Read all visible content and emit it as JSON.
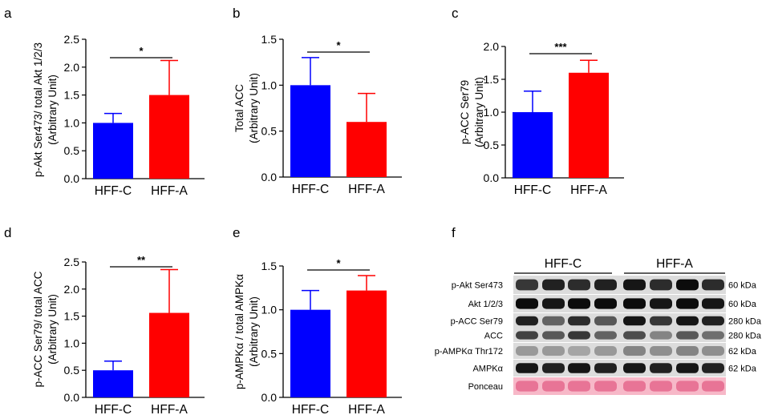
{
  "chart_data": [
    {
      "type": "bar",
      "panel": "a",
      "categories": [
        "HFF-C",
        "HFF-A"
      ],
      "values": [
        1.0,
        1.5
      ],
      "errors": [
        0.17,
        0.62
      ],
      "colors": [
        "#0000ff",
        "#ff0000"
      ],
      "ylabel": [
        "p-Akt Ser473/ total Akt 1/2/3",
        "(Arbitrary Unit)"
      ],
      "ylim": [
        0,
        2.5
      ],
      "yticks": [
        "0.0",
        "0.5",
        "1.0",
        "1.5",
        "2.0",
        "2.5"
      ],
      "significance": "*"
    },
    {
      "type": "bar",
      "panel": "b",
      "categories": [
        "HFF-C",
        "HFF-A"
      ],
      "values": [
        1.0,
        0.6
      ],
      "errors": [
        0.3,
        0.31
      ],
      "colors": [
        "#0000ff",
        "#ff0000"
      ],
      "ylabel": [
        "Total ACC",
        "(Arbitrary Unit)"
      ],
      "ylim": [
        0,
        1.5
      ],
      "yticks": [
        "0.0",
        "0.5",
        "1.0",
        "1.5"
      ],
      "significance": "*"
    },
    {
      "type": "bar",
      "panel": "c",
      "categories": [
        "HFF-C",
        "HFF-A"
      ],
      "values": [
        1.0,
        1.6
      ],
      "errors": [
        0.32,
        0.19
      ],
      "colors": [
        "#0000ff",
        "#ff0000"
      ],
      "ylabel": [
        "p-ACC Ser79",
        "(Arbitrary Unit)"
      ],
      "ylim": [
        0,
        2.0
      ],
      "yticks": [
        "0.0",
        "0.5",
        "1.0",
        "1.5",
        "2.0"
      ],
      "significance": "***"
    },
    {
      "type": "bar",
      "panel": "d",
      "categories": [
        "HFF-C",
        "HFF-A"
      ],
      "values": [
        0.5,
        1.56
      ],
      "errors": [
        0.17,
        0.8
      ],
      "colors": [
        "#0000ff",
        "#ff0000"
      ],
      "ylabel": [
        "p-ACC Ser79/ total ACC",
        "(Arbitrary Unit)"
      ],
      "ylim": [
        0,
        2.5
      ],
      "yticks": [
        "0.0",
        "0.5",
        "1.0",
        "1.5",
        "2.0",
        "2.5"
      ],
      "significance": "**"
    },
    {
      "type": "bar",
      "panel": "e",
      "categories": [
        "HFF-C",
        "HFF-A"
      ],
      "values": [
        1.0,
        1.22
      ],
      "errors": [
        0.22,
        0.17
      ],
      "colors": [
        "#0000ff",
        "#ff0000"
      ],
      "ylabel": [
        "p-AMPKα / total AMPKα",
        "(Arbitrary Unit)"
      ],
      "ylim": [
        0,
        1.5
      ],
      "yticks": [
        "0.0",
        "0.5",
        "1.0",
        "1.5"
      ],
      "significance": "*"
    }
  ],
  "blot": {
    "panel": "f",
    "groups": [
      "HFF-C",
      "HFF-A"
    ],
    "rows": [
      {
        "label": "p-Akt Ser473",
        "kda": "60 kDa"
      },
      {
        "label": "Akt 1/2/3",
        "kda": "60 kDa"
      },
      {
        "label": "p-ACC Ser79",
        "kda": "280 kDa"
      },
      {
        "label": "ACC",
        "kda": "280 kDa"
      },
      {
        "label": "p-AMPKα Thr172",
        "kda": "62 kDa"
      },
      {
        "label": "AMPKα",
        "kda": "62 kDa"
      },
      {
        "label": "Ponceau",
        "kda": ""
      }
    ],
    "band_intensity": [
      [
        0.75,
        0.85,
        0.8,
        0.85,
        0.9,
        0.8,
        0.95,
        0.8
      ],
      [
        0.95,
        0.9,
        0.95,
        0.95,
        0.95,
        0.9,
        0.95,
        0.9
      ],
      [
        0.85,
        0.55,
        0.8,
        0.6,
        0.9,
        0.75,
        0.9,
        0.85
      ],
      [
        0.7,
        0.6,
        0.75,
        0.55,
        0.65,
        0.4,
        0.6,
        0.5
      ],
      [
        0.3,
        0.3,
        0.25,
        0.3,
        0.4,
        0.35,
        0.4,
        0.35
      ],
      [
        0.9,
        0.85,
        0.9,
        0.85,
        0.9,
        0.85,
        0.9,
        0.85
      ],
      [
        0.5,
        0.5,
        0.5,
        0.5,
        0.5,
        0.5,
        0.5,
        0.5
      ]
    ]
  }
}
